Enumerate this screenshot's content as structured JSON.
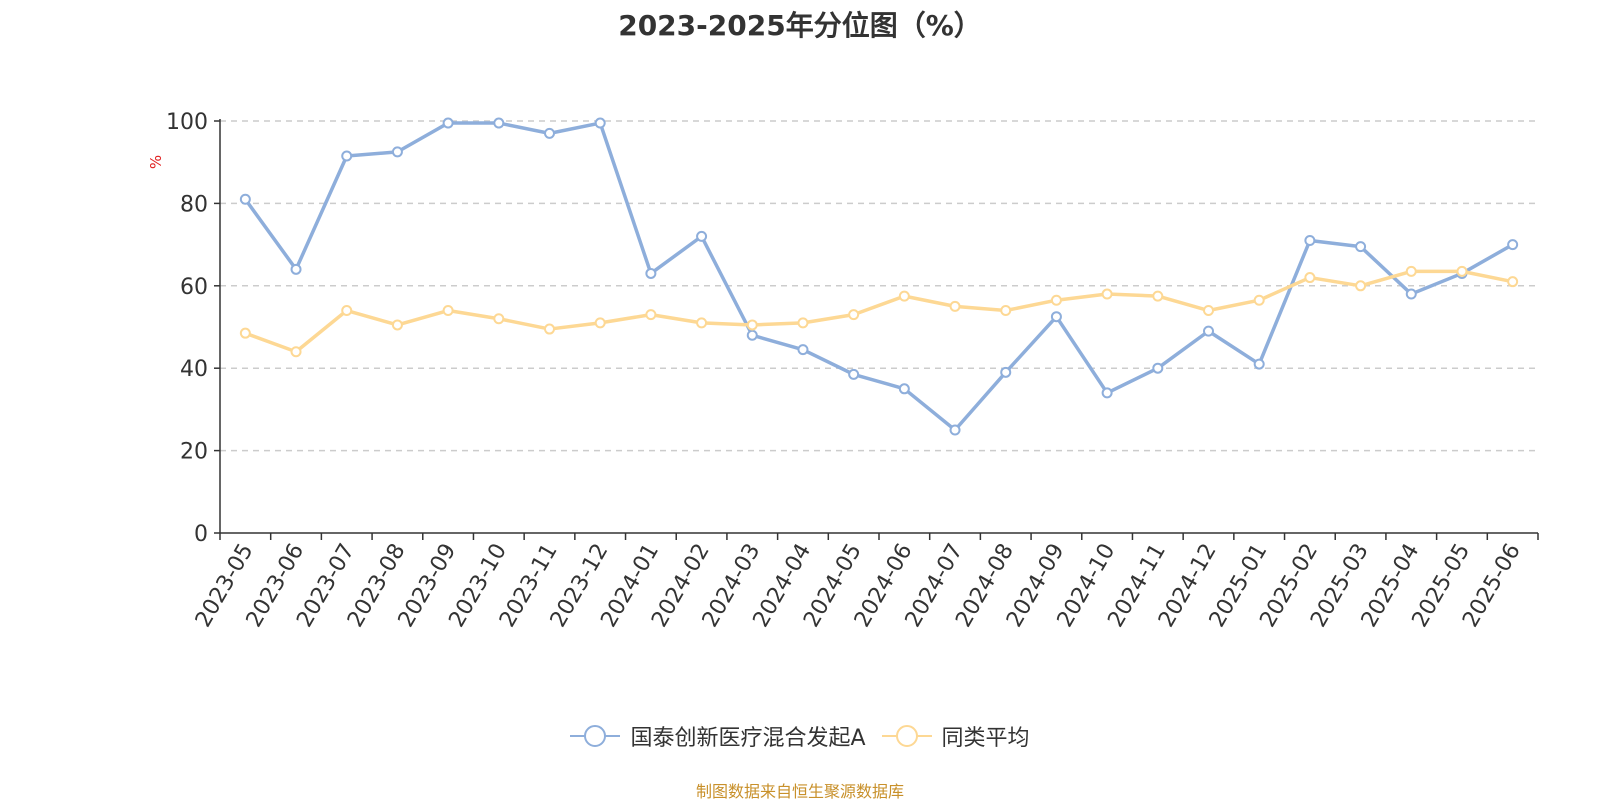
{
  "title": "2023-2025年分位图（%）",
  "source": "制图数据来自恒生聚源数据库",
  "chart_data": {
    "type": "line",
    "title": "2023-2025年分位图（%）",
    "ylabel": "%",
    "ylim": [
      0,
      100
    ],
    "yticks": [
      0,
      20,
      40,
      60,
      80,
      100
    ],
    "grid": true,
    "legend_position": "bottom",
    "categories": [
      "2023-05",
      "2023-06",
      "2023-07",
      "2023-08",
      "2023-09",
      "2023-10",
      "2023-11",
      "2023-12",
      "2024-01",
      "2024-02",
      "2024-03",
      "2024-04",
      "2024-05",
      "2024-06",
      "2024-07",
      "2024-08",
      "2024-09",
      "2024-10",
      "2024-11",
      "2024-12",
      "2025-01",
      "2025-02",
      "2025-03",
      "2025-04",
      "2025-05",
      "2025-06"
    ],
    "series": [
      {
        "name": "国泰创新医疗混合发起A",
        "color": "#8eaedb",
        "values": [
          81,
          64,
          91.5,
          92.5,
          99.5,
          99.5,
          97,
          99.5,
          63,
          72,
          48,
          44.5,
          38.5,
          35,
          25,
          39,
          52.5,
          34,
          40,
          49,
          41,
          71,
          69.5,
          58,
          63,
          70
        ]
      },
      {
        "name": "同类平均",
        "color": "#fdd894",
        "values": [
          48.5,
          44,
          54,
          50.5,
          54,
          52,
          49.5,
          51,
          53,
          51,
          50.5,
          51,
          53,
          57.5,
          55,
          54,
          56.5,
          58,
          57.5,
          54,
          56.5,
          62,
          60,
          63.5,
          63.5,
          61
        ]
      }
    ]
  }
}
